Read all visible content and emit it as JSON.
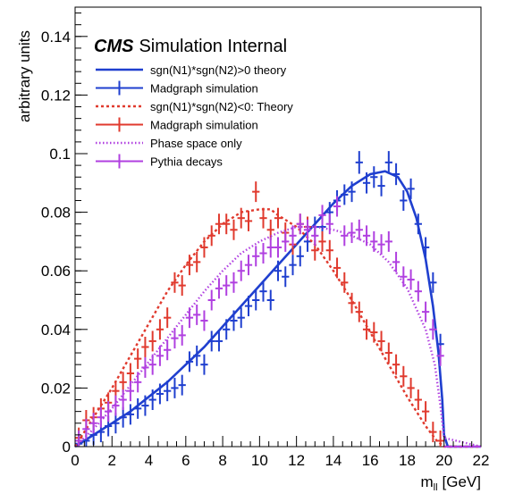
{
  "chart_data": {
    "type": "line",
    "title": "",
    "cms_label": {
      "bold": "CMS",
      "rest": "Simulation Internal"
    },
    "xlabel": "m",
    "xlabel_sub": "ll",
    "xlabel_unit": "[GeV]",
    "ylabel": "arbitrary units",
    "xlim": [
      0,
      22
    ],
    "ylim": [
      0,
      0.15
    ],
    "x_ticks": [
      "0",
      "2",
      "4",
      "6",
      "8",
      "10",
      "12",
      "14",
      "16",
      "18",
      "20",
      "22"
    ],
    "y_ticks": [
      "0",
      "0.02",
      "0.04",
      "0.06",
      "0.08",
      "0.1",
      "0.12",
      "0.14"
    ],
    "grid": false,
    "legend_position": "top-left",
    "colors": {
      "blue": "#1f3fcf",
      "red": "#e03a2e",
      "violet": "#b040e0"
    },
    "series": [
      {
        "name": "sgn(N1)*sgn(N2)>0 theory",
        "style": "solid-line",
        "color": "#1f3fcf",
        "x": [
          0,
          1,
          2,
          3,
          4,
          5,
          6,
          7,
          8,
          9,
          10,
          11,
          12,
          13,
          14,
          15,
          16,
          16.8,
          17.5,
          18,
          18.5,
          19,
          19.4,
          19.7,
          19.9,
          20,
          20.2,
          22
        ],
        "y": [
          0,
          0.004,
          0.008,
          0.012,
          0.017,
          0.022,
          0.028,
          0.034,
          0.041,
          0.048,
          0.055,
          0.062,
          0.069,
          0.076,
          0.083,
          0.089,
          0.093,
          0.094,
          0.092,
          0.087,
          0.078,
          0.064,
          0.048,
          0.032,
          0.016,
          0.004,
          0,
          0
        ]
      },
      {
        "name": "Madgraph simulation",
        "style": "points",
        "color": "#1f3fcf",
        "x": [
          0.2,
          0.6,
          1.0,
          1.4,
          1.8,
          2.2,
          2.6,
          3.0,
          3.4,
          3.8,
          4.2,
          4.6,
          5.0,
          5.4,
          5.8,
          6.2,
          6.6,
          7.0,
          7.4,
          7.8,
          8.2,
          8.6,
          9.0,
          9.4,
          9.8,
          10.2,
          10.6,
          11.0,
          11.4,
          11.8,
          12.2,
          12.6,
          13.0,
          13.4,
          13.8,
          14.2,
          14.6,
          15.0,
          15.4,
          15.8,
          16.2,
          16.6,
          17.0,
          17.4,
          17.8,
          18.2,
          18.6,
          19.0,
          19.4,
          19.8,
          20.2,
          20.6,
          21.0,
          21.4,
          21.8
        ],
        "y": [
          0.001,
          0.002,
          0.004,
          0.005,
          0.007,
          0.008,
          0.01,
          0.011,
          0.013,
          0.014,
          0.016,
          0.018,
          0.019,
          0.02,
          0.021,
          0.029,
          0.031,
          0.028,
          0.036,
          0.036,
          0.04,
          0.043,
          0.044,
          0.048,
          0.05,
          0.053,
          0.05,
          0.06,
          0.058,
          0.062,
          0.065,
          0.07,
          0.075,
          0.075,
          0.08,
          0.084,
          0.086,
          0.087,
          0.097,
          0.09,
          0.092,
          0.089,
          0.097,
          0.093,
          0.084,
          0.088,
          0.076,
          0.068,
          0.056,
          0.035,
          0,
          0,
          0,
          0,
          0
        ]
      },
      {
        "name": "sgn(N1)*sgn(N2)<0: Theory",
        "style": "dashed-line",
        "color": "#e03a2e",
        "x": [
          0,
          1,
          2,
          3,
          4,
          5,
          6,
          7,
          8,
          9,
          10,
          10.6,
          11,
          12,
          13,
          14,
          15,
          16,
          17,
          18,
          19,
          19.6,
          20,
          22
        ],
        "y": [
          0,
          0.01,
          0.02,
          0.031,
          0.042,
          0.053,
          0.062,
          0.07,
          0.076,
          0.08,
          0.081,
          0.081,
          0.079,
          0.075,
          0.069,
          0.06,
          0.05,
          0.039,
          0.028,
          0.017,
          0.007,
          0.002,
          0,
          0
        ]
      },
      {
        "name": "Madgraph simulation",
        "style": "points",
        "color": "#e03a2e",
        "x": [
          0.2,
          0.6,
          1.0,
          1.4,
          1.8,
          2.2,
          2.6,
          3.0,
          3.4,
          3.8,
          4.2,
          4.6,
          5.0,
          5.4,
          5.8,
          6.2,
          6.6,
          7.0,
          7.4,
          7.8,
          8.2,
          8.6,
          9.0,
          9.4,
          9.8,
          10.2,
          10.6,
          11.0,
          11.4,
          11.8,
          12.2,
          12.6,
          13.0,
          13.4,
          13.8,
          14.2,
          14.6,
          15.0,
          15.4,
          15.8,
          16.2,
          16.6,
          17.0,
          17.4,
          17.8,
          18.2,
          18.6,
          19.0,
          19.4,
          19.8,
          20.2,
          20.6,
          21.0,
          21.4,
          21.8
        ],
        "y": [
          0.003,
          0.009,
          0.01,
          0.013,
          0.015,
          0.019,
          0.022,
          0.025,
          0.03,
          0.034,
          0.036,
          0.04,
          0.044,
          0.056,
          0.055,
          0.062,
          0.063,
          0.068,
          0.072,
          0.076,
          0.076,
          0.074,
          0.078,
          0.077,
          0.087,
          0.078,
          0.074,
          0.078,
          0.073,
          0.069,
          0.076,
          0.075,
          0.067,
          0.07,
          0.067,
          0.061,
          0.056,
          0.049,
          0.046,
          0.04,
          0.039,
          0.036,
          0.032,
          0.028,
          0.024,
          0.02,
          0.016,
          0.012,
          0.005,
          0.002,
          0,
          0,
          0,
          0,
          0
        ]
      },
      {
        "name": "Phase space only",
        "style": "dotted-line",
        "color": "#b040e0",
        "x": [
          0,
          1,
          2,
          3,
          4,
          5,
          6,
          7,
          8,
          9,
          10,
          11,
          12,
          13,
          14,
          14.6,
          15,
          16,
          17,
          18,
          19,
          19.5,
          19.8,
          20,
          22
        ],
        "y": [
          0,
          0.006,
          0.013,
          0.021,
          0.029,
          0.037,
          0.045,
          0.053,
          0.06,
          0.066,
          0.07,
          0.073,
          0.075,
          0.075,
          0.074,
          0.073,
          0.072,
          0.069,
          0.063,
          0.054,
          0.04,
          0.028,
          0.014,
          0.003,
          0
        ]
      },
      {
        "name": "Pythia decays",
        "style": "points",
        "color": "#b040e0",
        "x": [
          0.2,
          0.6,
          1.0,
          1.4,
          1.8,
          2.2,
          2.6,
          3.0,
          3.4,
          3.8,
          4.2,
          4.6,
          5.0,
          5.4,
          5.8,
          6.2,
          6.6,
          7.0,
          7.4,
          7.8,
          8.2,
          8.6,
          9.0,
          9.4,
          9.8,
          10.2,
          10.6,
          11.0,
          11.4,
          11.8,
          12.2,
          12.6,
          13.0,
          13.4,
          13.8,
          14.2,
          14.6,
          15.0,
          15.4,
          15.8,
          16.2,
          16.6,
          17.0,
          17.4,
          17.8,
          18.2,
          18.6,
          19.0,
          19.4,
          19.8,
          20.2,
          20.6,
          21.0,
          21.4,
          21.8
        ],
        "y": [
          0.002,
          0.006,
          0.008,
          0.01,
          0.012,
          0.014,
          0.016,
          0.019,
          0.022,
          0.027,
          0.028,
          0.031,
          0.033,
          0.037,
          0.038,
          0.044,
          0.045,
          0.043,
          0.05,
          0.054,
          0.055,
          0.056,
          0.06,
          0.062,
          0.065,
          0.066,
          0.068,
          0.068,
          0.07,
          0.072,
          0.076,
          0.074,
          0.072,
          0.079,
          0.076,
          0.082,
          0.072,
          0.073,
          0.074,
          0.072,
          0.07,
          0.069,
          0.07,
          0.063,
          0.058,
          0.057,
          0.053,
          0.046,
          0.04,
          0.031,
          0,
          0,
          0,
          0,
          0
        ]
      }
    ]
  }
}
